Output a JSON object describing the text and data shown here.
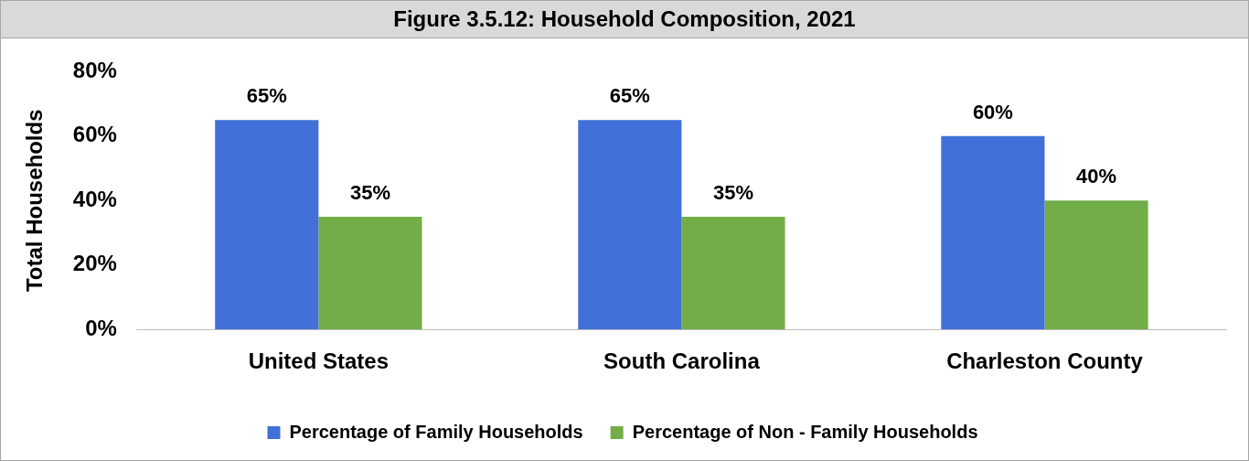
{
  "chart_data": {
    "type": "bar",
    "title": "Figure 3.5.12: Household Composition, 2021",
    "ylabel": "Total Households",
    "categories": [
      "United States",
      "South Carolina",
      "Charleston County"
    ],
    "series": [
      {
        "name": "Percentage of Family Households",
        "color": "#4170d8",
        "values": [
          65,
          65,
          60
        ],
        "value_labels": [
          "65%",
          "65%",
          "60%"
        ]
      },
      {
        "name": "Percentage of Non - Family Households",
        "color": "#72ad47",
        "values": [
          35,
          35,
          40
        ],
        "value_labels": [
          "35%",
          "35%",
          "40%"
        ]
      }
    ],
    "ylim": [
      0,
      80
    ],
    "yticks": [
      {
        "value": 0,
        "label": "0%"
      },
      {
        "value": 20,
        "label": "20%"
      },
      {
        "value": 40,
        "label": "40%"
      },
      {
        "value": 60,
        "label": "60%"
      },
      {
        "value": 80,
        "label": "80%"
      }
    ],
    "grid": false,
    "legend": "bottom"
  }
}
